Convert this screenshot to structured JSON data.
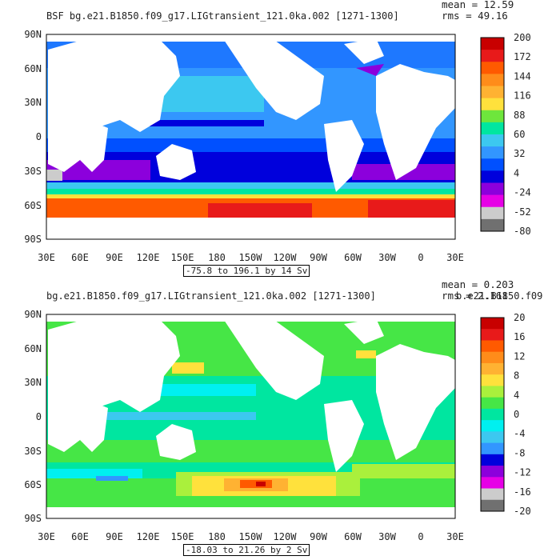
{
  "panels": [
    {
      "title": "BSF bg.e21.B1850.f09_g17.LIGtransient_121.0ka.002 [1271-1300]",
      "overlay_text": "",
      "mean_label": "mean = 12.59",
      "rms_label": "rms = 49.16",
      "range_label": "-75.8 to 196.1 by 14 Sv",
      "colorbar_labels": [
        "200",
        "172",
        "144",
        "116",
        "88",
        "60",
        "32",
        "4",
        "-24",
        "-52",
        "-80"
      ],
      "colorbar_colors": [
        "#c80000",
        "#e81a1a",
        "#ff5a00",
        "#ff8c1a",
        "#ffb232",
        "#ffe13c",
        "#6ee63c",
        "#00e6a0",
        "#3cc8f0",
        "#3296ff",
        "#0050ff",
        "#0000dc",
        "#8c00dc",
        "#e600e6",
        "#cccccc",
        "#707070"
      ]
    },
    {
      "title": "bg.e21.B1850.f09_g17.LIGtransient_121.0ka.002 [1271-1300]",
      "overlay_text": "b.e21.B1850.f09",
      "mean_label": "mean = 0.203",
      "rms_label": "rms = 2.161",
      "range_label": "-18.03 to 21.26 by 2 Sv",
      "colorbar_labels": [
        "20",
        "16",
        "12",
        "8",
        "4",
        "0",
        "-4",
        "-8",
        "-12",
        "-16",
        "-20"
      ],
      "colorbar_colors": [
        "#c80000",
        "#e81a1a",
        "#ff5a00",
        "#ff8c1a",
        "#ffb232",
        "#ffe13c",
        "#aaf03c",
        "#46e646",
        "#00e6a0",
        "#00f0f0",
        "#3cc8f0",
        "#3296ff",
        "#0000dc",
        "#8c00dc",
        "#e600e6",
        "#cccccc",
        "#707070"
      ]
    }
  ],
  "lat_labels": [
    "90N",
    "60N",
    "30N",
    "0",
    "30S",
    "60S",
    "90S"
  ],
  "lon_labels": [
    "30E",
    "60E",
    "90E",
    "120E",
    "150E",
    "180",
    "150W",
    "120W",
    "90W",
    "60W",
    "30W",
    "0",
    "30E"
  ]
}
